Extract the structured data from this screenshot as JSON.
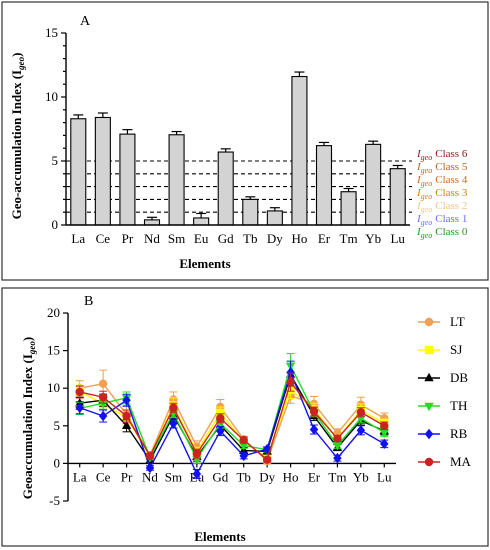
{
  "chart_data": [
    {
      "panel": "A",
      "type": "bar",
      "xlabel": "Elements",
      "ylabel": "Geo-accumulation Index (I",
      "ylabel_sub": "geo",
      "ylim": [
        0,
        15
      ],
      "yticks": [
        "0",
        "5",
        "10",
        "15"
      ],
      "categories": [
        "La",
        "Ce",
        "Pr",
        "Nd",
        "Sm",
        "Eu",
        "Gd",
        "Tb",
        "Dy",
        "Ho",
        "Er",
        "Tm",
        "Yb",
        "Lu"
      ],
      "values": [
        8.3,
        8.4,
        7.1,
        0.4,
        7.05,
        0.55,
        5.7,
        2.0,
        1.1,
        11.6,
        6.2,
        2.6,
        6.3,
        4.4
      ],
      "errors": [
        0.3,
        0.35,
        0.35,
        0.2,
        0.25,
        0.35,
        0.25,
        0.2,
        0.25,
        0.35,
        0.25,
        0.25,
        0.25,
        0.25
      ],
      "thresholds": [
        0,
        1,
        2,
        3,
        4,
        5
      ],
      "classes": [
        {
          "prefix": "I",
          "sub": "geo",
          "label": "Class 6",
          "color": "#8b1a1a"
        },
        {
          "prefix": "I",
          "sub": "geo",
          "label": "Class 5",
          "color": "#b5651d"
        },
        {
          "prefix": "I",
          "sub": "geo",
          "label": "Class 4",
          "color": "#d2691e"
        },
        {
          "prefix": "I",
          "sub": "geo",
          "label": "Class 3",
          "color": "#cc8400"
        },
        {
          "prefix": "I",
          "sub": "geo",
          "label": "Class 2",
          "color": "#f5c48a"
        },
        {
          "prefix": "I",
          "sub": "geo",
          "label": "Class 1",
          "color": "#6a6aff"
        },
        {
          "prefix": "I",
          "sub": "geo",
          "label": "Class 0",
          "color": "#1a9a1a"
        }
      ]
    },
    {
      "panel": "B",
      "type": "line",
      "xlabel": "Elements",
      "ylabel": "Geoaccumulation Index (I",
      "ylabel_sub": "geo",
      "ylim": [
        -5,
        20
      ],
      "yticks": [
        "-5",
        "0",
        "5",
        "10",
        "15",
        "20"
      ],
      "categories": [
        "La",
        "Ce",
        "Pr",
        "Nd",
        "Sm",
        "Eu",
        "Gd",
        "Tb",
        "Dy",
        "Ho",
        "Er",
        "Tm",
        "Yb",
        "Lu"
      ],
      "series": [
        {
          "name": "LT",
          "color": "#f0a050",
          "marker": "circle",
          "values": [
            10.0,
            10.6,
            6.5,
            1.1,
            8.5,
            2.2,
            7.5,
            3.2,
            0.3,
            9.0,
            7.9,
            4.0,
            7.8,
            6.0
          ],
          "errors": [
            1.0,
            1.8,
            1.2,
            0.3,
            1.0,
            0.8,
            1.0,
            0.4,
            0.3,
            1.0,
            1.0,
            0.6,
            1.0,
            0.7
          ]
        },
        {
          "name": "SJ",
          "color": "#ffff00",
          "marker": "square",
          "values": [
            9.6,
            7.9,
            6.1,
            1.0,
            7.7,
            1.5,
            6.7,
            2.9,
            0.8,
            9.8,
            7.2,
            3.3,
            7.1,
            5.3
          ],
          "errors": [
            0.8,
            1.0,
            1.0,
            0.3,
            1.0,
            0.6,
            0.8,
            0.4,
            0.3,
            1.2,
            0.8,
            0.5,
            0.8,
            0.6
          ]
        },
        {
          "name": "DB",
          "color": "#000000",
          "marker": "triangle-up",
          "values": [
            8.0,
            8.4,
            5.0,
            0.4,
            6.4,
            0.9,
            5.1,
            1.7,
            1.6,
            11.8,
            6.3,
            2.1,
            5.7,
            4.3
          ],
          "errors": [
            0.8,
            0.8,
            0.8,
            0.3,
            0.6,
            0.6,
            0.6,
            0.4,
            0.3,
            1.5,
            0.6,
            0.4,
            0.6,
            0.5
          ]
        },
        {
          "name": "TH",
          "color": "#22dd22",
          "marker": "triangle-down",
          "values": [
            7.3,
            8.0,
            8.7,
            0.8,
            6.7,
            0.6,
            5.3,
            2.4,
            1.8,
            13.0,
            6.8,
            2.4,
            6.0,
            4.1
          ],
          "errors": [
            0.8,
            0.8,
            0.8,
            0.3,
            0.6,
            0.6,
            0.6,
            0.4,
            0.3,
            1.6,
            0.6,
            0.4,
            0.6,
            0.5
          ]
        },
        {
          "name": "RB",
          "color": "#1111ee",
          "marker": "diamond",
          "values": [
            7.4,
            6.3,
            8.4,
            -0.6,
            5.3,
            -1.4,
            4.3,
            1.0,
            1.9,
            12.1,
            4.5,
            0.7,
            4.4,
            2.6
          ],
          "errors": [
            0.8,
            0.8,
            0.8,
            0.3,
            0.6,
            0.6,
            0.6,
            0.4,
            0.3,
            1.5,
            0.6,
            0.4,
            0.6,
            0.5
          ]
        },
        {
          "name": "MA",
          "color": "#cc2222",
          "marker": "circle",
          "values": [
            9.5,
            8.8,
            6.3,
            1.0,
            7.4,
            1.3,
            6.0,
            3.1,
            0.5,
            10.8,
            6.9,
            3.3,
            6.8,
            5.0
          ],
          "errors": [
            0.8,
            0.8,
            0.8,
            0.3,
            0.6,
            0.6,
            0.6,
            0.4,
            0.3,
            1.2,
            0.6,
            0.4,
            0.6,
            0.5
          ]
        }
      ]
    }
  ]
}
